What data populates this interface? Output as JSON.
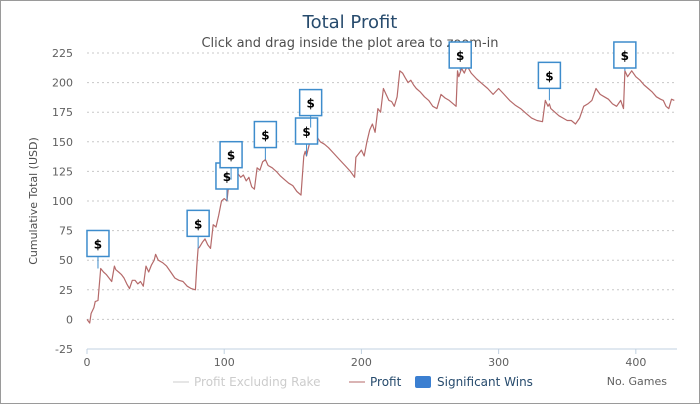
{
  "chart_data": {
    "type": "line",
    "title": "Total Profit",
    "subtitle": "Click and drag inside the plot area to zoom-in",
    "ylabel": "Cumulative Total (USD)",
    "xlabel": "No. Games",
    "xlim": [
      0,
      430
    ],
    "ylim": [
      -25,
      225
    ],
    "xticks": [
      0,
      100,
      200,
      300,
      400
    ],
    "yticks": [
      -25,
      0,
      25,
      50,
      75,
      100,
      125,
      150,
      175,
      200,
      225
    ],
    "grid": true,
    "legend_position": "bottom-center",
    "colors": {
      "profit": "#b56a6a",
      "profit_excluding_rake": "#cccccc",
      "significant_wins": "#3b7fd1",
      "flag_border": "#3d8ccc",
      "grid": "#c8c8c8",
      "title": "#274b6d"
    },
    "series": [
      {
        "name": "Profit",
        "x": [
          0,
          2,
          3,
          5,
          6,
          8,
          10,
          12,
          14,
          16,
          18,
          20,
          21,
          23,
          25,
          27,
          29,
          31,
          33,
          35,
          37,
          39,
          41,
          43,
          45,
          47,
          49,
          50,
          52,
          55,
          58,
          61,
          64,
          67,
          70,
          73,
          76,
          79,
          80,
          81,
          82,
          84,
          86,
          88,
          90,
          92,
          94,
          96,
          98,
          100,
          102,
          104,
          106,
          108,
          110,
          112,
          114,
          116,
          118,
          120,
          122,
          124,
          126,
          128,
          130,
          132,
          135,
          138,
          141,
          144,
          147,
          150,
          153,
          156,
          158,
          159,
          160,
          162,
          163,
          165,
          167,
          170,
          173,
          176,
          180,
          184,
          188,
          192,
          195,
          196,
          198,
          200,
          202,
          204,
          206,
          208,
          210,
          212,
          214,
          216,
          218,
          220,
          222,
          224,
          226,
          228,
          230,
          232,
          234,
          236,
          238,
          240,
          243,
          246,
          249,
          252,
          255,
          258,
          261,
          264,
          267,
          269,
          270,
          271,
          273,
          275,
          277,
          280,
          284,
          288,
          292,
          296,
          300,
          304,
          308,
          312,
          316,
          320,
          324,
          328,
          332,
          334,
          336,
          337,
          338,
          341,
          344,
          347,
          350,
          353,
          356,
          359,
          362,
          365,
          368,
          371,
          374,
          377,
          380,
          383,
          386,
          389,
          391,
          392,
          394,
          397,
          400,
          403,
          406,
          409,
          412,
          415,
          418,
          420,
          422,
          424,
          426,
          428
        ],
        "values": [
          0,
          -3,
          5,
          10,
          15,
          16,
          43,
          40,
          38,
          35,
          32,
          45,
          42,
          40,
          38,
          35,
          30,
          26,
          33,
          33,
          30,
          32,
          28,
          45,
          40,
          46,
          50,
          55,
          50,
          48,
          45,
          40,
          35,
          33,
          32,
          28,
          26,
          25,
          45,
          60,
          61,
          65,
          68,
          63,
          60,
          80,
          78,
          88,
          100,
          102,
          100,
          122,
          118,
          115,
          123,
          120,
          122,
          117,
          120,
          112,
          110,
          128,
          126,
          133,
          135,
          130,
          128,
          125,
          121,
          118,
          115,
          113,
          108,
          105,
          138,
          142,
          138,
          148,
          162,
          158,
          155,
          150,
          148,
          145,
          140,
          135,
          130,
          125,
          120,
          137,
          140,
          143,
          138,
          150,
          160,
          165,
          158,
          178,
          175,
          195,
          190,
          185,
          184,
          180,
          188,
          210,
          208,
          204,
          200,
          202,
          198,
          195,
          192,
          188,
          185,
          180,
          178,
          190,
          187,
          185,
          182,
          180,
          210,
          205,
          212,
          208,
          214,
          208,
          203,
          199,
          195,
          190,
          195,
          190,
          185,
          181,
          178,
          174,
          170,
          168,
          167,
          185,
          180,
          182,
          178,
          175,
          172,
          170,
          168,
          168,
          165,
          170,
          180,
          182,
          185,
          195,
          190,
          188,
          186,
          182,
          180,
          185,
          178,
          210,
          205,
          210,
          205,
          202,
          198,
          195,
          192,
          188,
          186,
          185,
          180,
          178,
          186,
          185
        ]
      }
    ],
    "flags": [
      {
        "x": 8,
        "y": 43,
        "label": "$"
      },
      {
        "x": 81,
        "y": 60,
        "label": "$"
      },
      {
        "x": 102,
        "y": 100,
        "label": "$"
      },
      {
        "x": 105,
        "y": 118,
        "label": "$"
      },
      {
        "x": 130,
        "y": 135,
        "label": "$"
      },
      {
        "x": 160,
        "y": 138,
        "label": "$"
      },
      {
        "x": 163,
        "y": 162,
        "label": "$"
      },
      {
        "x": 272,
        "y": 210,
        "label": "$"
      },
      {
        "x": 337,
        "y": 185,
        "label": "$"
      },
      {
        "x": 392,
        "y": 210,
        "label": "$"
      }
    ],
    "legend": [
      {
        "name": "Profit Excluding Rake",
        "kind": "line",
        "active": false
      },
      {
        "name": "Profit",
        "kind": "line",
        "active": true
      },
      {
        "name": "Significant Wins",
        "kind": "box",
        "active": true
      }
    ]
  }
}
